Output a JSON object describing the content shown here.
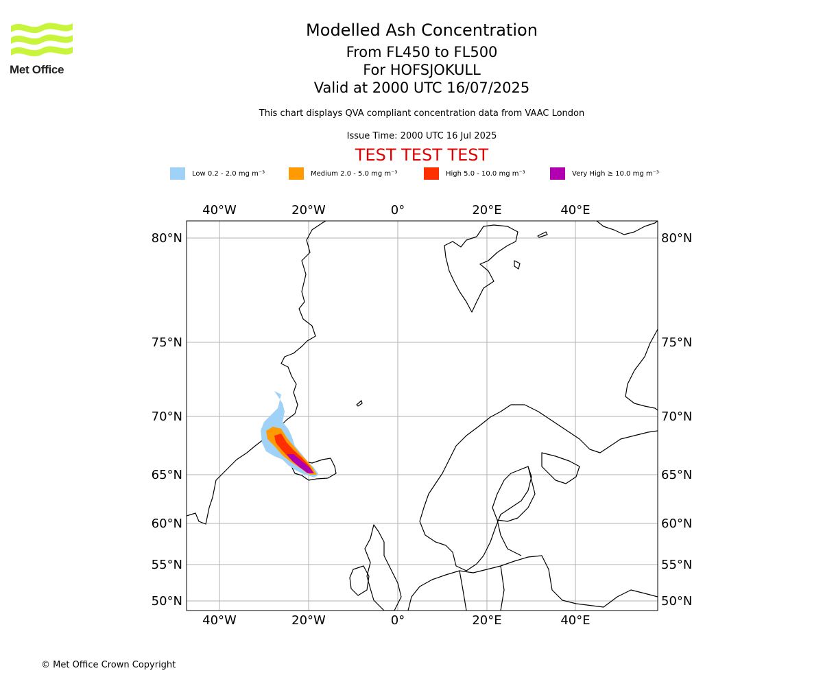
{
  "header": {
    "logo_text": "Met Office",
    "title": "Modelled Ash Concentration",
    "levels": "From FL450 to FL500",
    "volcano": "For HOFSJOKULL",
    "valid": "Valid at 2000 UTC 16/07/2025",
    "description": "This chart displays QVA compliant concentration data from VAAC London",
    "issue_time": "Issue Time: 2000 UTC 16 Jul 2025",
    "test_banner": "TEST TEST TEST"
  },
  "legend": [
    {
      "name": "Low",
      "label": "Low 0.2 - 2.0 mg m⁻³",
      "color": "#a0d2f8"
    },
    {
      "name": "Medium",
      "label": "Medium 2.0 - 5.0 mg m⁻³",
      "color": "#ff9b00"
    },
    {
      "name": "High",
      "label": "High 5.0 - 10.0 mg m⁻³",
      "color": "#ff3000"
    },
    {
      "name": "Very High",
      "label": "Very High  ≥  10.0 mg m⁻³",
      "color": "#b000b0"
    }
  ],
  "map": {
    "longitude_ticks": [
      "40°W",
      "20°W",
      "0°",
      "20°E",
      "40°E"
    ],
    "latitude_ticks": [
      "80°N",
      "75°N",
      "70°N",
      "65°N",
      "60°N",
      "55°N",
      "50°N"
    ],
    "grid": true
  },
  "footer": {
    "copyright": "© Met Office Crown Copyright"
  }
}
